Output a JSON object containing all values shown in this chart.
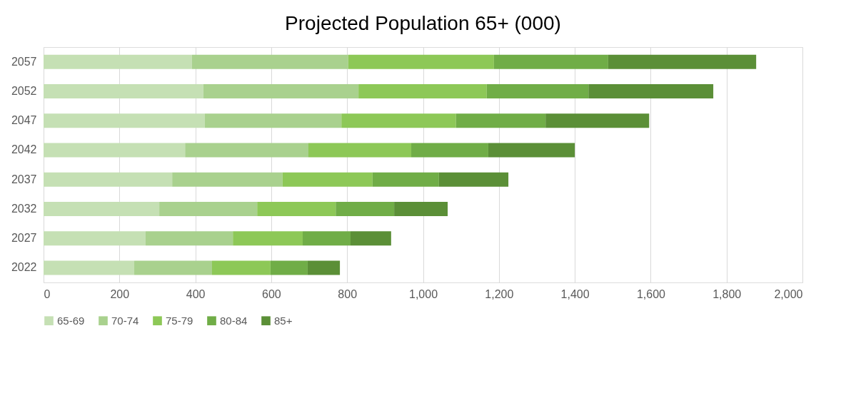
{
  "chart_data": {
    "type": "bar",
    "title": "Projected Population 65+ (000)",
    "orientation": "horizontal",
    "stacked": true,
    "categories": [
      "2057",
      "2052",
      "2047",
      "2042",
      "2037",
      "2032",
      "2027",
      "2022"
    ],
    "series": [
      {
        "name": "65-69",
        "color": "#c5e0b4",
        "values": [
          391,
          421,
          425,
          373,
          339,
          305,
          269,
          239
        ]
      },
      {
        "name": "70-74",
        "color": "#a9d18e",
        "values": [
          412,
          409,
          360,
          325,
          291,
          258,
          230,
          205
        ]
      },
      {
        "name": "75-79",
        "color": "#8dc857",
        "values": [
          384,
          338,
          302,
          271,
          237,
          207,
          184,
          154
        ]
      },
      {
        "name": "80-84",
        "color": "#70ad47",
        "values": [
          301,
          268,
          236,
          203,
          175,
          154,
          126,
          98
        ]
      },
      {
        "name": "85+",
        "color": "#5b8f37",
        "values": [
          390,
          329,
          273,
          228,
          183,
          141,
          107,
          85
        ]
      }
    ],
    "xlim": [
      0,
      2000
    ],
    "xticks": [
      0,
      200,
      400,
      600,
      800,
      {
        "value": 1000,
        "label": "1,000"
      },
      {
        "value": 1200,
        "label": "1,200"
      },
      {
        "value": 1400,
        "label": "1,400"
      },
      {
        "value": 1600,
        "label": "1,600"
      },
      {
        "value": 1800,
        "label": "1,800"
      },
      {
        "value": 2000,
        "label": "2,000"
      }
    ],
    "grid": "x",
    "legend": "bottom"
  }
}
